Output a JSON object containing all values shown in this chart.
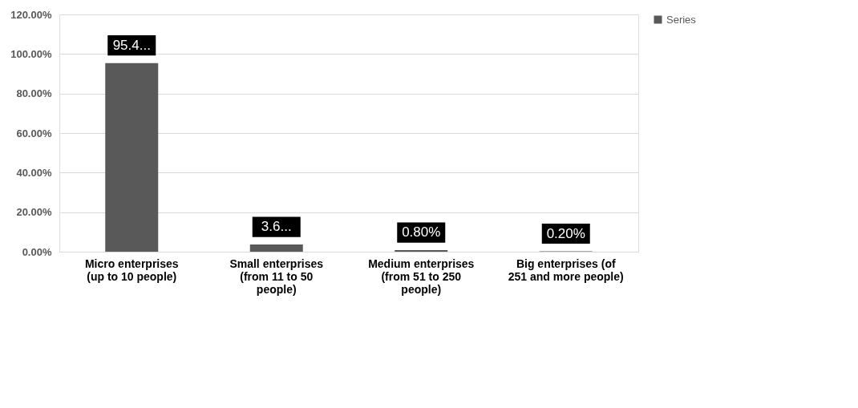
{
  "chart_data": {
    "type": "bar",
    "categories": [
      "Micro enterprises (up to 10 people)",
      "Small enterprises (from 11 to 50 people)",
      "Medium enterprises (from 51 to 250 people)",
      "Big enterprises (of 251 and more people)"
    ],
    "series": [
      {
        "name": "Series",
        "color": "#595959",
        "values": [
          95.4,
          3.6,
          0.8,
          0.2
        ],
        "value_labels": [
          "95.4...",
          "3.6...",
          "0.80%",
          "0.20%"
        ]
      }
    ],
    "ylim": [
      0,
      120
    ],
    "yticks": [
      {
        "value": 0,
        "label": "0.00%"
      },
      {
        "value": 20,
        "label": "20.00%"
      },
      {
        "value": 40,
        "label": "40.00%"
      },
      {
        "value": 60,
        "label": "60.00%"
      },
      {
        "value": 80,
        "label": "80.00%"
      },
      {
        "value": 100,
        "label": "100.00%"
      },
      {
        "value": 120,
        "label": "120.00%"
      }
    ],
    "grid": "y",
    "legend": "right"
  }
}
